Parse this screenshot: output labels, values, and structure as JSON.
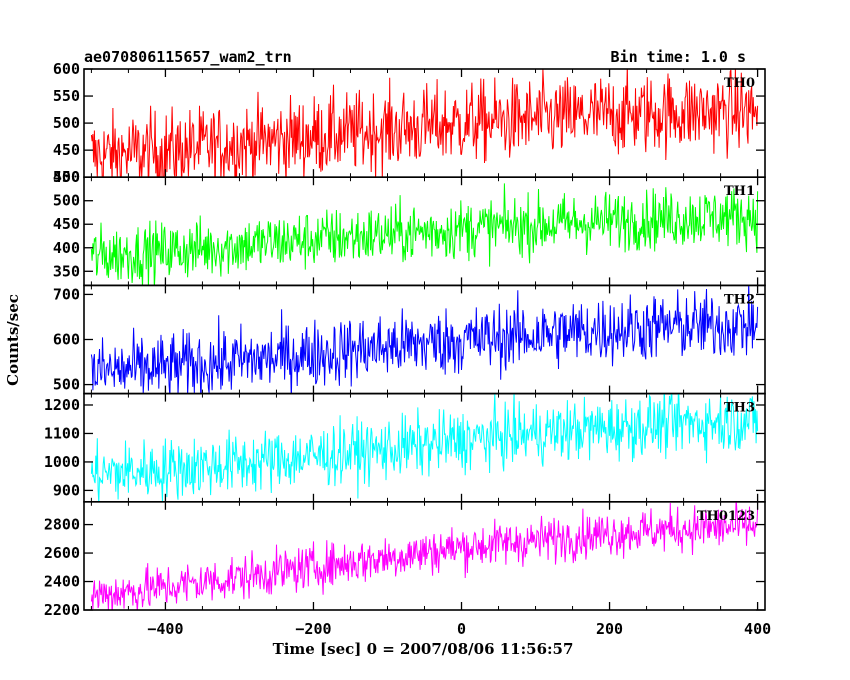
{
  "header": {
    "left_title": "ae070806115657_wam2_trn",
    "right_title": "Bin time: 1.0 s"
  },
  "chart_data": {
    "type": "line",
    "title": "ae070806115657_wam2_trn",
    "bin_time": "Bin time: 1.0 s",
    "xlabel": "Time [sec] 0 = 2007/08/06 11:56:57",
    "ylabel": "Counts/sec",
    "xlim": [
      -510,
      410
    ],
    "data_x_range": [
      -500,
      400
    ],
    "x_ticks": [
      -400,
      -200,
      0,
      200,
      400
    ],
    "x_tick_labels": [
      "−400",
      "−200",
      "0",
      "200",
      "400"
    ],
    "grid": false,
    "panels": [
      {
        "name": "TH0",
        "color": "#ff0000",
        "ylim": [
          400,
          600
        ],
        "y_ticks": [
          400,
          450,
          500,
          550,
          600
        ],
        "trend": {
          "x": [
            -500,
            -400,
            -300,
            -200,
            -100,
            0,
            100,
            200,
            300,
            400
          ],
          "y": [
            440,
            448,
            462,
            476,
            487,
            500,
            507,
            515,
            520,
            523
          ]
        },
        "scatter_amplitude": 38
      },
      {
        "name": "TH1",
        "color": "#00ff00",
        "ylim": [
          320,
          550
        ],
        "y_ticks": [
          350,
          400,
          450,
          500,
          550
        ],
        "trend": {
          "x": [
            -500,
            -400,
            -300,
            -200,
            -100,
            0,
            100,
            200,
            300,
            400
          ],
          "y": [
            382,
            392,
            405,
            418,
            428,
            440,
            448,
            457,
            464,
            467
          ]
        },
        "scatter_amplitude": 32
      },
      {
        "name": "TH2",
        "color": "#0000ff",
        "ylim": [
          480,
          720
        ],
        "y_ticks": [
          500,
          600,
          700
        ],
        "trend": {
          "x": [
            -500,
            -400,
            -300,
            -200,
            -100,
            0,
            100,
            200,
            300,
            400
          ],
          "y": [
            528,
            538,
            552,
            568,
            584,
            598,
            610,
            622,
            630,
            633
          ]
        },
        "scatter_amplitude": 38
      },
      {
        "name": "TH3",
        "color": "#00ffff",
        "ylim": [
          860,
          1240
        ],
        "y_ticks": [
          900,
          1000,
          1100,
          1200
        ],
        "trend": {
          "x": [
            -500,
            -400,
            -300,
            -200,
            -100,
            0,
            100,
            200,
            300,
            400
          ],
          "y": [
            955,
            975,
            995,
            1020,
            1045,
            1075,
            1100,
            1120,
            1138,
            1145
          ]
        },
        "scatter_amplitude": 55
      },
      {
        "name": "TH0123",
        "color": "#ff00ff",
        "ylim": [
          2200,
          2960
        ],
        "y_ticks": [
          2200,
          2400,
          2600,
          2800
        ],
        "trend": {
          "x": [
            -500,
            -400,
            -300,
            -200,
            -100,
            0,
            100,
            200,
            300,
            400
          ],
          "y": [
            2300,
            2360,
            2430,
            2500,
            2570,
            2640,
            2690,
            2740,
            2770,
            2790
          ]
        },
        "scatter_amplitude": 80
      }
    ]
  }
}
